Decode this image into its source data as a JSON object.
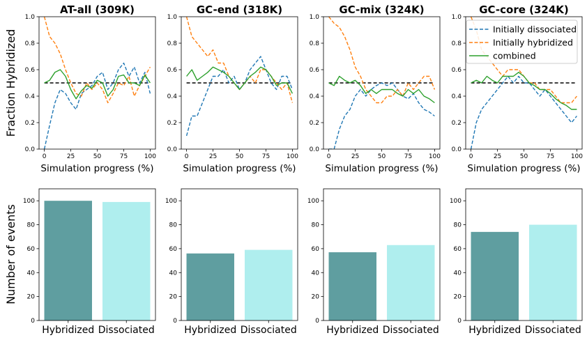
{
  "figure": {
    "ylabel_top": "Fraction Hybridized",
    "ylabel_bottom": "Number of events",
    "xlabel_top": "Simulation progress (%)"
  },
  "legend": {
    "placement": "upper-right of fourth top panel",
    "entries": [
      {
        "label": "Initially dissociated",
        "color": "#1f77b4",
        "dash": "dashed"
      },
      {
        "label": "Initially hybridized",
        "color": "#ff7f0e",
        "dash": "dashed"
      },
      {
        "label": "combined",
        "color": "#2ca02c",
        "dash": "solid"
      }
    ]
  },
  "colors": {
    "dissociated": "#1f77b4",
    "hybridized": "#ff7f0e",
    "combined": "#2ca02c",
    "bar_hybridized": "#5f9ea0",
    "bar_dissociated": "#afeeee",
    "reference_line": "#000000"
  },
  "chart_data": [
    {
      "type": "line",
      "title": "AT-all (309K)",
      "xlabel": "Simulation progress (%)",
      "ylabel": "Fraction Hybridized",
      "xlim": [
        -5,
        105
      ],
      "ylim": [
        0,
        1
      ],
      "xticks": [
        0,
        25,
        50,
        75,
        100
      ],
      "yticks": [
        0.0,
        0.2,
        0.4,
        0.6,
        0.8,
        1.0
      ],
      "reference_y": 0.5,
      "x": [
        0,
        5,
        10,
        15,
        20,
        25,
        30,
        35,
        40,
        45,
        50,
        55,
        60,
        65,
        70,
        75,
        80,
        85,
        90,
        95,
        100
      ],
      "series": [
        {
          "name": "Initially dissociated",
          "values": [
            0.0,
            0.18,
            0.35,
            0.45,
            0.42,
            0.35,
            0.3,
            0.42,
            0.45,
            0.48,
            0.55,
            0.58,
            0.45,
            0.5,
            0.6,
            0.65,
            0.55,
            0.62,
            0.5,
            0.58,
            0.42
          ]
        },
        {
          "name": "Initially hybridized",
          "values": [
            1.0,
            0.85,
            0.8,
            0.72,
            0.6,
            0.5,
            0.42,
            0.4,
            0.5,
            0.45,
            0.5,
            0.45,
            0.35,
            0.42,
            0.5,
            0.48,
            0.55,
            0.4,
            0.48,
            0.55,
            0.62
          ]
        },
        {
          "name": "combined",
          "values": [
            0.5,
            0.52,
            0.58,
            0.6,
            0.55,
            0.45,
            0.38,
            0.44,
            0.48,
            0.46,
            0.52,
            0.5,
            0.4,
            0.45,
            0.55,
            0.56,
            0.5,
            0.5,
            0.48,
            0.56,
            0.5
          ]
        }
      ]
    },
    {
      "type": "line",
      "title": "GC-end (318K)",
      "xlabel": "Simulation progress (%)",
      "xlim": [
        -5,
        105
      ],
      "ylim": [
        0,
        1
      ],
      "xticks": [
        0,
        25,
        50,
        75,
        100
      ],
      "yticks": [
        0.0,
        0.2,
        0.4,
        0.6,
        0.8,
        1.0
      ],
      "reference_y": 0.5,
      "x": [
        0,
        5,
        10,
        15,
        20,
        25,
        30,
        35,
        40,
        45,
        50,
        55,
        60,
        65,
        70,
        75,
        80,
        85,
        90,
        95,
        100
      ],
      "series": [
        {
          "name": "Initially dissociated",
          "values": [
            0.1,
            0.25,
            0.25,
            0.35,
            0.45,
            0.55,
            0.55,
            0.6,
            0.5,
            0.55,
            0.45,
            0.5,
            0.6,
            0.65,
            0.7,
            0.6,
            0.5,
            0.45,
            0.55,
            0.55,
            0.45
          ]
        },
        {
          "name": "Initially hybridized",
          "values": [
            1.0,
            0.85,
            0.8,
            0.75,
            0.7,
            0.75,
            0.65,
            0.65,
            0.55,
            0.5,
            0.45,
            0.5,
            0.55,
            0.5,
            0.6,
            0.6,
            0.55,
            0.5,
            0.45,
            0.5,
            0.35
          ]
        },
        {
          "name": "combined",
          "values": [
            0.55,
            0.6,
            0.52,
            0.55,
            0.58,
            0.62,
            0.6,
            0.58,
            0.55,
            0.5,
            0.45,
            0.5,
            0.55,
            0.58,
            0.62,
            0.6,
            0.55,
            0.48,
            0.5,
            0.5,
            0.42
          ]
        }
      ]
    },
    {
      "type": "line",
      "title": "GC-mix (324K)",
      "xlabel": "Simulation progress (%)",
      "xlim": [
        -5,
        105
      ],
      "ylim": [
        0,
        1
      ],
      "xticks": [
        0,
        25,
        50,
        75,
        100
      ],
      "yticks": [
        0.0,
        0.2,
        0.4,
        0.6,
        0.8,
        1.0
      ],
      "reference_y": 0.5,
      "x": [
        0,
        5,
        10,
        15,
        20,
        25,
        30,
        35,
        40,
        45,
        50,
        55,
        60,
        65,
        70,
        75,
        80,
        85,
        90,
        95,
        100
      ],
      "series": [
        {
          "name": "Initially dissociated",
          "values": [
            0.0,
            0.0,
            0.15,
            0.25,
            0.3,
            0.4,
            0.45,
            0.4,
            0.45,
            0.48,
            0.5,
            0.48,
            0.5,
            0.45,
            0.4,
            0.38,
            0.42,
            0.35,
            0.3,
            0.28,
            0.25
          ]
        },
        {
          "name": "Initially hybridized",
          "values": [
            1.0,
            0.95,
            0.92,
            0.85,
            0.75,
            0.62,
            0.55,
            0.45,
            0.4,
            0.35,
            0.35,
            0.4,
            0.4,
            0.45,
            0.4,
            0.5,
            0.45,
            0.5,
            0.55,
            0.55,
            0.45
          ]
        },
        {
          "name": "combined",
          "values": [
            0.5,
            0.48,
            0.55,
            0.52,
            0.5,
            0.52,
            0.48,
            0.42,
            0.45,
            0.42,
            0.45,
            0.45,
            0.45,
            0.42,
            0.4,
            0.45,
            0.42,
            0.45,
            0.4,
            0.38,
            0.35
          ]
        }
      ]
    },
    {
      "type": "line",
      "title": "GC-core (324K)",
      "xlabel": "Simulation progress (%)",
      "xlim": [
        -5,
        105
      ],
      "ylim": [
        0,
        1
      ],
      "xticks": [
        0,
        25,
        50,
        75,
        100
      ],
      "yticks": [
        0.0,
        0.2,
        0.4,
        0.6,
        0.8,
        1.0
      ],
      "reference_y": 0.5,
      "x": [
        0,
        5,
        10,
        15,
        20,
        25,
        30,
        35,
        40,
        45,
        50,
        55,
        60,
        65,
        70,
        75,
        80,
        85,
        90,
        95,
        100
      ],
      "series": [
        {
          "name": "Initially dissociated",
          "values": [
            0.0,
            0.2,
            0.3,
            0.35,
            0.4,
            0.45,
            0.5,
            0.55,
            0.5,
            0.55,
            0.5,
            0.5,
            0.45,
            0.4,
            0.45,
            0.4,
            0.35,
            0.3,
            0.25,
            0.2,
            0.25
          ]
        },
        {
          "name": "Initially hybridized",
          "values": [
            1.0,
            0.9,
            0.75,
            0.7,
            0.65,
            0.6,
            0.55,
            0.6,
            0.6,
            0.6,
            0.55,
            0.5,
            0.5,
            0.45,
            0.45,
            0.45,
            0.4,
            0.35,
            0.35,
            0.35,
            0.4
          ]
        },
        {
          "name": "combined",
          "values": [
            0.5,
            0.52,
            0.5,
            0.55,
            0.52,
            0.5,
            0.55,
            0.55,
            0.55,
            0.58,
            0.55,
            0.5,
            0.48,
            0.45,
            0.45,
            0.42,
            0.38,
            0.35,
            0.33,
            0.3,
            0.3
          ]
        }
      ]
    },
    {
      "type": "bar",
      "ylabel": "Number of events",
      "categories": [
        "Hybridized",
        "Dissociated"
      ],
      "values": [
        100,
        99
      ],
      "ylim": [
        0,
        110
      ],
      "yticks": [
        0,
        20,
        40,
        60,
        80,
        100
      ]
    },
    {
      "type": "bar",
      "categories": [
        "Hybridized",
        "Dissociated"
      ],
      "values": [
        56,
        59
      ],
      "ylim": [
        0,
        110
      ],
      "yticks": [
        0,
        20,
        40,
        60,
        80,
        100
      ]
    },
    {
      "type": "bar",
      "categories": [
        "Hybridized",
        "Dissociated"
      ],
      "values": [
        57,
        63
      ],
      "ylim": [
        0,
        110
      ],
      "yticks": [
        0,
        20,
        40,
        60,
        80,
        100
      ]
    },
    {
      "type": "bar",
      "categories": [
        "Hybridized",
        "Dissociated"
      ],
      "values": [
        74,
        80
      ],
      "ylim": [
        0,
        110
      ],
      "yticks": [
        0,
        20,
        40,
        60,
        80,
        100
      ]
    }
  ]
}
